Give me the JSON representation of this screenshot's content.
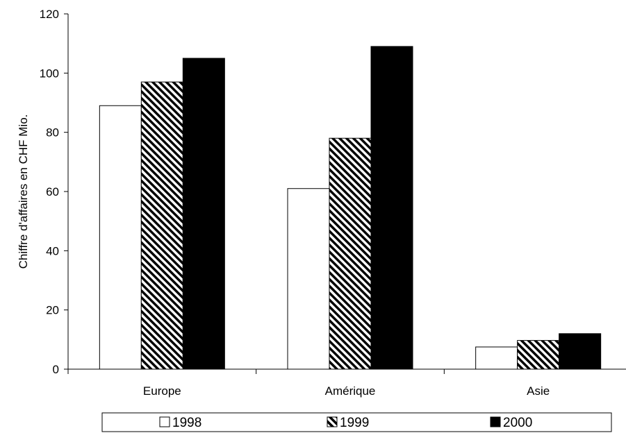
{
  "chart_data": {
    "type": "bar",
    "title": "",
    "xlabel": "",
    "ylabel": "Chiffre d'affaires en CHF Mio.",
    "categories": [
      "Europe",
      "Amérique",
      "Asie"
    ],
    "ylim": [
      0,
      120
    ],
    "yticks": [
      0,
      20,
      40,
      60,
      80,
      100,
      120
    ],
    "ytick_labels": [
      "0",
      "20",
      "40",
      "60",
      "80",
      "100",
      "120"
    ],
    "grid": false,
    "legend": {
      "position": "bottom",
      "bordered": true
    },
    "series": [
      {
        "name": "1998",
        "values": [
          89,
          61,
          7.5
        ],
        "color": "#ffffff",
        "fill": "white"
      },
      {
        "name": "1999",
        "values": [
          97,
          78,
          9.7
        ],
        "color": "#000000",
        "fill": "diagonal-hatch"
      },
      {
        "name": "2000",
        "values": [
          105,
          109,
          12
        ],
        "color": "#000000",
        "fill": "solid-black"
      }
    ]
  }
}
